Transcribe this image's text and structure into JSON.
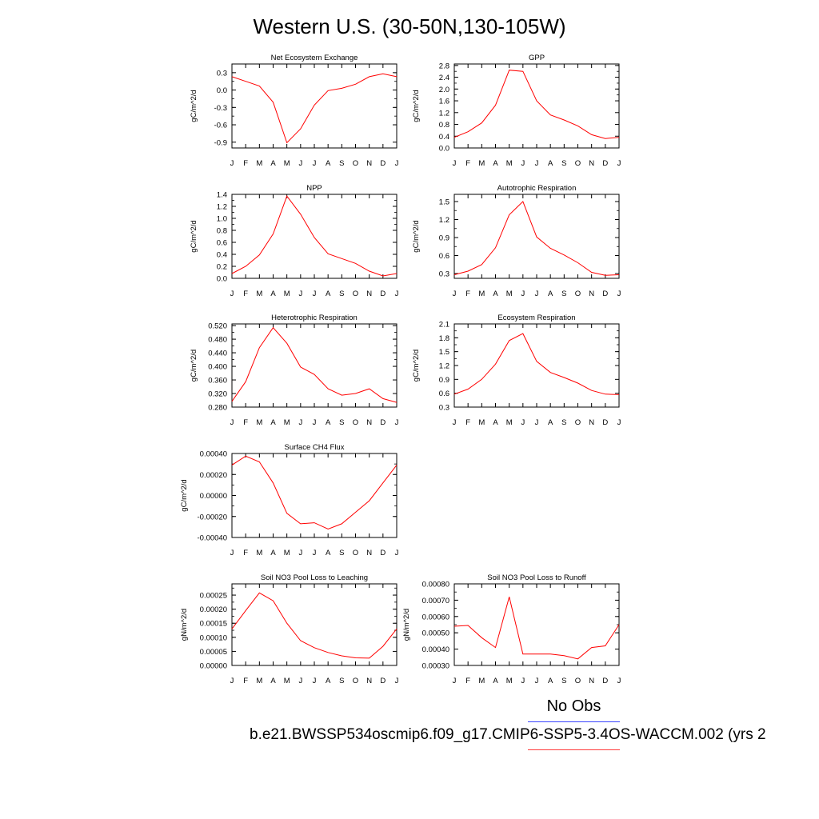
{
  "figure": {
    "title": "Western U.S. (30-50N,130-105W)",
    "legend": {
      "obs_label": "No Obs",
      "obs_color": "#3a44ff",
      "case_label": "b.e21.BWSSP534oscmip6.f09_g17.CMIP6-SSP5-3.4OS-WACCM.002 (yrs 2",
      "case_color": "#ff3a3a"
    }
  },
  "chart_data": [
    {
      "type": "line",
      "title": "Net Ecosystem Exchange",
      "ylabel": "gC/m^2/d",
      "x": [
        "J",
        "F",
        "M",
        "A",
        "M",
        "J",
        "J",
        "A",
        "S",
        "O",
        "N",
        "D",
        "J"
      ],
      "ylim": [
        -1.0,
        0.45
      ],
      "yticks": [
        "0.3",
        "0.0",
        "-0.3",
        "-0.6",
        "-0.9"
      ],
      "series": [
        {
          "color": "#ff0000",
          "values": [
            0.23,
            0.15,
            0.07,
            -0.21,
            -0.91,
            -0.67,
            -0.26,
            -0.01,
            0.03,
            0.1,
            0.23,
            0.28,
            0.23
          ]
        }
      ]
    },
    {
      "type": "line",
      "title": "GPP",
      "ylabel": "gC/m^2/d",
      "x": [
        "J",
        "F",
        "M",
        "A",
        "M",
        "J",
        "J",
        "A",
        "S",
        "O",
        "N",
        "D",
        "J"
      ],
      "ylim": [
        0.0,
        2.85
      ],
      "yticks": [
        "2.8",
        "2.4",
        "2.0",
        "1.6",
        "1.2",
        "0.8",
        "0.4",
        "0.0"
      ],
      "series": [
        {
          "color": "#ff0000",
          "values": [
            0.36,
            0.55,
            0.85,
            1.45,
            2.64,
            2.6,
            1.6,
            1.12,
            0.95,
            0.75,
            0.45,
            0.32,
            0.36
          ]
        }
      ]
    },
    {
      "type": "line",
      "title": "NPP",
      "ylabel": "gC/m^2/d",
      "x": [
        "J",
        "F",
        "M",
        "A",
        "M",
        "J",
        "J",
        "A",
        "S",
        "O",
        "N",
        "D",
        "J"
      ],
      "ylim": [
        0.0,
        1.4
      ],
      "yticks": [
        "1.4",
        "1.2",
        "1.0",
        "0.8",
        "0.6",
        "0.4",
        "0.2",
        "0.0"
      ],
      "series": [
        {
          "color": "#ff0000",
          "values": [
            0.08,
            0.2,
            0.39,
            0.74,
            1.37,
            1.07,
            0.68,
            0.41,
            0.33,
            0.25,
            0.12,
            0.04,
            0.08
          ]
        }
      ]
    },
    {
      "type": "line",
      "title": "Autotrophic Respiration",
      "ylabel": "gC/m^2/d",
      "x": [
        "J",
        "F",
        "M",
        "A",
        "M",
        "J",
        "J",
        "A",
        "S",
        "O",
        "N",
        "D",
        "J"
      ],
      "ylim": [
        0.22,
        1.62
      ],
      "yticks": [
        "1.5",
        "1.2",
        "0.9",
        "0.6",
        "0.3"
      ],
      "series": [
        {
          "color": "#ff0000",
          "values": [
            0.28,
            0.34,
            0.45,
            0.73,
            1.28,
            1.5,
            0.91,
            0.72,
            0.61,
            0.48,
            0.32,
            0.27,
            0.28
          ]
        }
      ]
    },
    {
      "type": "line",
      "title": "Heterotrophic Respiration",
      "ylabel": "gC/m^2/d",
      "x": [
        "J",
        "F",
        "M",
        "A",
        "M",
        "J",
        "J",
        "A",
        "S",
        "O",
        "N",
        "D",
        "J"
      ],
      "ylim": [
        0.28,
        0.525
      ],
      "yticks": [
        "0.520",
        "0.480",
        "0.440",
        "0.400",
        "0.360",
        "0.320",
        "0.280"
      ],
      "series": [
        {
          "color": "#ff0000",
          "values": [
            0.297,
            0.355,
            0.455,
            0.514,
            0.468,
            0.398,
            0.376,
            0.334,
            0.315,
            0.32,
            0.334,
            0.305,
            0.294
          ]
        }
      ]
    },
    {
      "type": "line",
      "title": "Ecosystem Respiration",
      "ylabel": "gC/m^2/d",
      "x": [
        "J",
        "F",
        "M",
        "A",
        "M",
        "J",
        "J",
        "A",
        "S",
        "O",
        "N",
        "D",
        "J"
      ],
      "ylim": [
        0.3,
        2.1
      ],
      "yticks": [
        "2.1",
        "1.8",
        "1.5",
        "1.2",
        "0.9",
        "0.6",
        "0.3"
      ],
      "series": [
        {
          "color": "#ff0000",
          "values": [
            0.58,
            0.69,
            0.9,
            1.23,
            1.74,
            1.89,
            1.29,
            1.05,
            0.94,
            0.82,
            0.66,
            0.58,
            0.57
          ]
        }
      ]
    },
    {
      "type": "line",
      "title": "Surface CH4 Flux",
      "ylabel": "gC/m^2/d",
      "x": [
        "J",
        "F",
        "M",
        "A",
        "M",
        "J",
        "J",
        "A",
        "S",
        "O",
        "N",
        "D",
        "J"
      ],
      "ylim": [
        -0.0004,
        0.0004
      ],
      "yticks": [
        "0.00040",
        "0.00020",
        "0.00000",
        "-0.00020",
        "-0.00040"
      ],
      "series": [
        {
          "color": "#ff0000",
          "values": [
            0.00029,
            0.000375,
            0.00032,
            0.00012,
            -0.00017,
            -0.00027,
            -0.00026,
            -0.00032,
            -0.00027,
            -0.00016,
            -5e-05,
            0.00012,
            0.00029
          ]
        }
      ]
    },
    {
      "type": "line",
      "title": "Soil NO3 Pool Loss to Leaching",
      "ylabel": "gN/m^2/d",
      "x": [
        "J",
        "F",
        "M",
        "A",
        "M",
        "J",
        "J",
        "A",
        "S",
        "O",
        "N",
        "D",
        "J"
      ],
      "ylim": [
        0.0,
        0.00029
      ],
      "yticks": [
        "0.00025",
        "0.00020",
        "0.00015",
        "0.00010",
        "0.00005",
        "0.00000"
      ],
      "series": [
        {
          "color": "#ff0000",
          "values": [
            0.00013,
            0.000195,
            0.000258,
            0.00023,
            0.00015,
            8.8e-05,
            6.3e-05,
            4.6e-05,
            3.4e-05,
            2.7e-05,
            2.6e-05,
            6.8e-05,
            0.00013
          ]
        }
      ]
    },
    {
      "type": "line",
      "title": "Soil NO3 Pool Loss to Runoff",
      "ylabel": "gN/m^2/d",
      "x": [
        "J",
        "F",
        "M",
        "A",
        "M",
        "J",
        "J",
        "A",
        "S",
        "O",
        "N",
        "D",
        "J"
      ],
      "ylim": [
        0.0003,
        0.0008
      ],
      "yticks": [
        "0.00080",
        "0.00070",
        "0.00060",
        "0.00050",
        "0.00040",
        "0.00030"
      ],
      "series": [
        {
          "color": "#ff0000",
          "values": [
            0.00054,
            0.000545,
            0.00047,
            0.00041,
            0.00072,
            0.00037,
            0.00037,
            0.00037,
            0.00036,
            0.00034,
            0.00041,
            0.00042,
            0.00055
          ]
        }
      ]
    }
  ]
}
